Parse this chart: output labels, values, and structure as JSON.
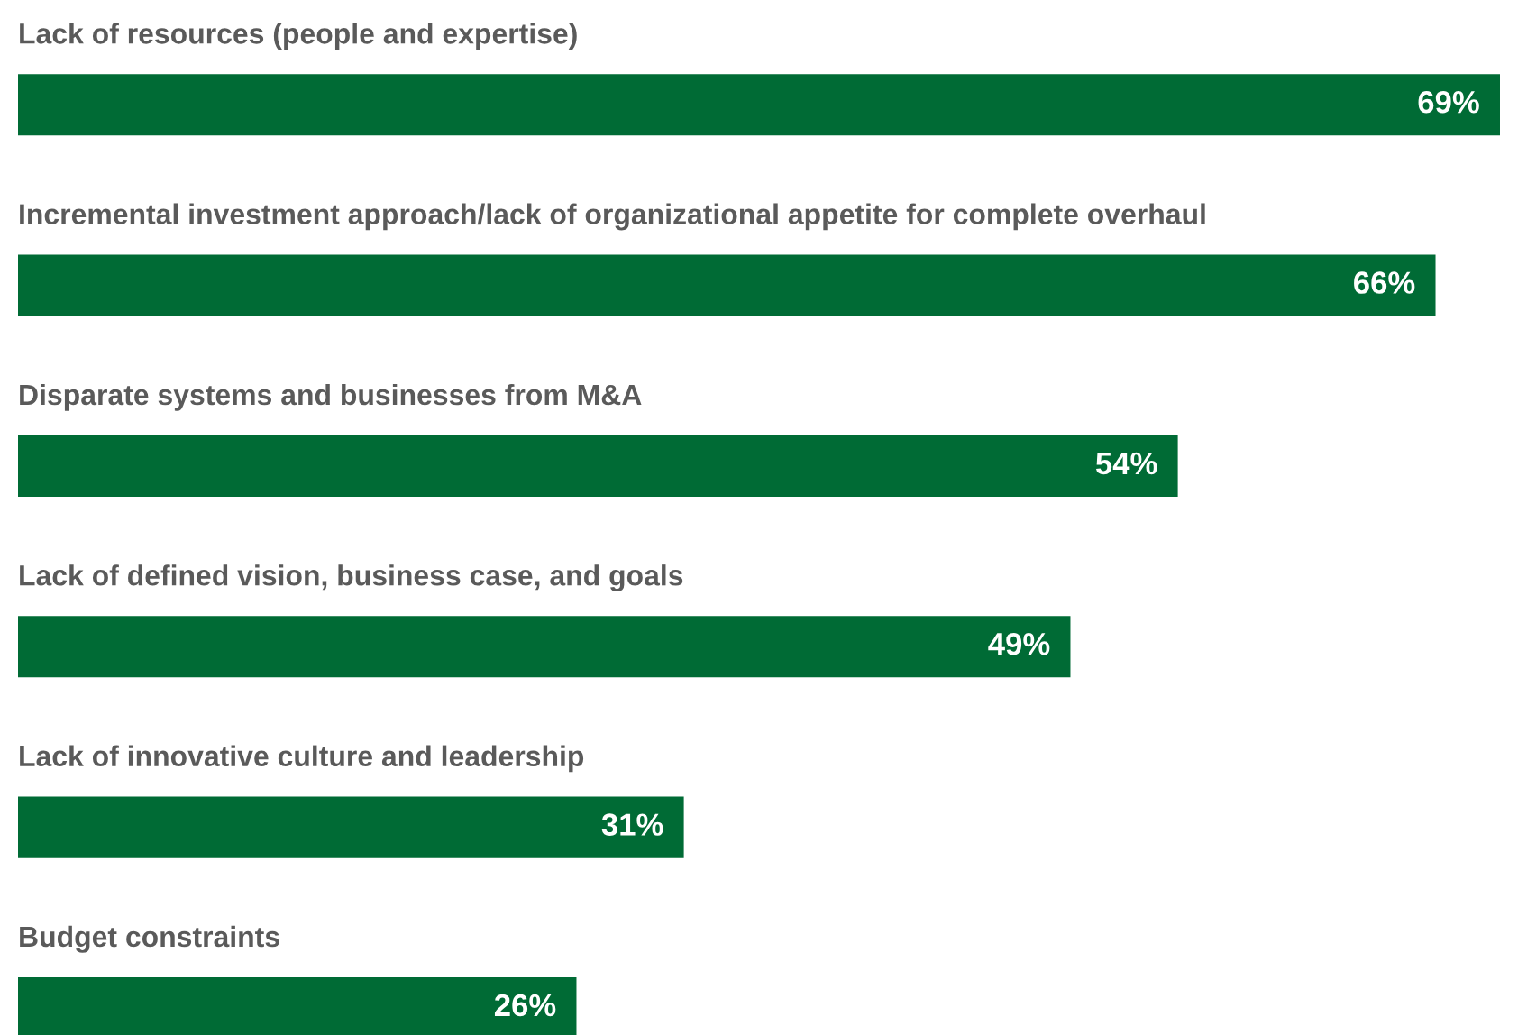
{
  "chart_data": {
    "type": "bar",
    "orientation": "horizontal",
    "categories": [
      "Lack of resources (people and expertise)",
      "Incremental investment approach/lack of organizational appetite for complete overhaul",
      "Disparate systems and businesses from M&A",
      "Lack of defined vision, business case, and goals",
      "Lack of innovative culture and leadership",
      "Budget constraints"
    ],
    "values": [
      69,
      66,
      54,
      49,
      31,
      26
    ],
    "value_labels": [
      "69%",
      "66%",
      "54%",
      "49%",
      "31%",
      "26%"
    ],
    "color": "#006b35"
  }
}
